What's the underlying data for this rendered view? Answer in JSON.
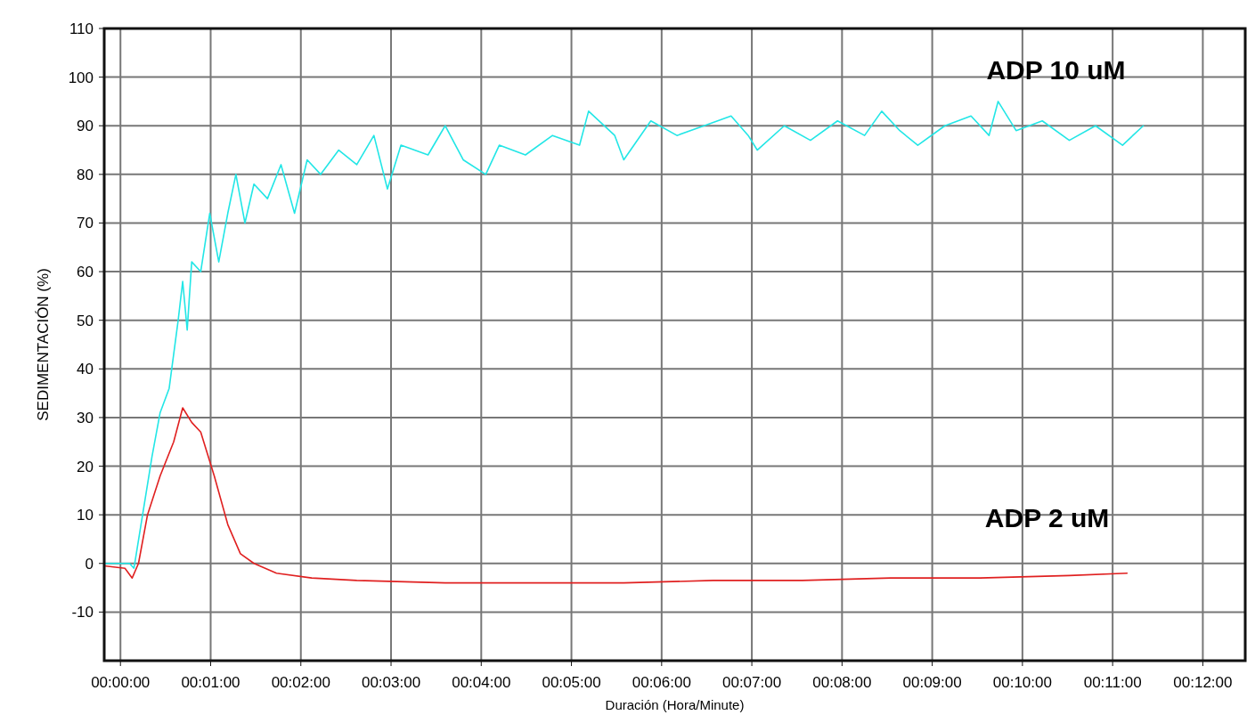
{
  "chart_data": {
    "type": "line",
    "xlabel": "Duración (Hora/Minute)",
    "ylabel": "SEDIMENTACIÓN (%)",
    "xlim": [
      -0.18,
      12.47
    ],
    "ylim": [
      -20,
      110
    ],
    "xticks": [
      {
        "value": 0,
        "label": "00:00:00"
      },
      {
        "value": 1,
        "label": "00:01:00"
      },
      {
        "value": 2,
        "label": "00:02:00"
      },
      {
        "value": 3,
        "label": "00:03:00"
      },
      {
        "value": 4,
        "label": "00:04:00"
      },
      {
        "value": 5,
        "label": "00:05:00"
      },
      {
        "value": 6,
        "label": "00:06:00"
      },
      {
        "value": 7,
        "label": "00:07:00"
      },
      {
        "value": 8,
        "label": "00:08:00"
      },
      {
        "value": 9,
        "label": "00:09:00"
      },
      {
        "value": 10,
        "label": "00:10:00"
      },
      {
        "value": 11,
        "label": "00:11:00"
      },
      {
        "value": 12,
        "label": "00:12:00"
      }
    ],
    "yticks": [
      -10,
      0,
      10,
      20,
      30,
      40,
      50,
      60,
      70,
      80,
      90,
      100,
      110
    ],
    "grid": true,
    "marker": "none",
    "line_style": "solid",
    "series": [
      {
        "name": "ADP 10 uM",
        "color": "#22e6e6",
        "x": [
          -0.18,
          0.1,
          0.15,
          0.35,
          0.44,
          0.54,
          0.64,
          0.69,
          0.74,
          0.79,
          0.89,
          0.99,
          1.09,
          1.19,
          1.28,
          1.38,
          1.48,
          1.63,
          1.78,
          1.93,
          2.07,
          2.22,
          2.42,
          2.62,
          2.81,
          2.96,
          3.11,
          3.41,
          3.6,
          3.8,
          4.05,
          4.2,
          4.49,
          4.79,
          5.09,
          5.19,
          5.48,
          5.58,
          5.88,
          6.17,
          6.47,
          6.77,
          6.96,
          7.06,
          7.36,
          7.65,
          7.95,
          8.25,
          8.44,
          8.64,
          8.84,
          9.14,
          9.43,
          9.63,
          9.73,
          9.93,
          10.22,
          10.52,
          10.81,
          11.11,
          11.34
        ],
        "values": [
          0,
          0,
          -1,
          22,
          31,
          36,
          50,
          58,
          48,
          62,
          60,
          72,
          62,
          72,
          80,
          70,
          78,
          75,
          82,
          72,
          83,
          80,
          85,
          82,
          88,
          77,
          86,
          84,
          90,
          83,
          80,
          86,
          84,
          88,
          86,
          93,
          88,
          83,
          91,
          88,
          90,
          92,
          88,
          85,
          90,
          87,
          91,
          88,
          93,
          89,
          86,
          90,
          92,
          88,
          95,
          89,
          91,
          87,
          90,
          86,
          90
        ]
      },
      {
        "name": "ADP 2 uM",
        "color": "#e02020",
        "x": [
          -0.18,
          0.05,
          0.13,
          0.2,
          0.3,
          0.44,
          0.59,
          0.69,
          0.79,
          0.89,
          1.04,
          1.19,
          1.33,
          1.48,
          1.73,
          2.12,
          2.62,
          3.6,
          4.59,
          5.58,
          6.57,
          7.56,
          8.54,
          9.53,
          10.52,
          11.16
        ],
        "values": [
          -0.5,
          -1,
          -3,
          0,
          10,
          18,
          25,
          32,
          29,
          27,
          18,
          8,
          2,
          0,
          -2,
          -3,
          -3.5,
          -4,
          -4,
          -4,
          -3.5,
          -3.5,
          -3,
          -3,
          -2.5,
          -2
        ]
      }
    ]
  }
}
